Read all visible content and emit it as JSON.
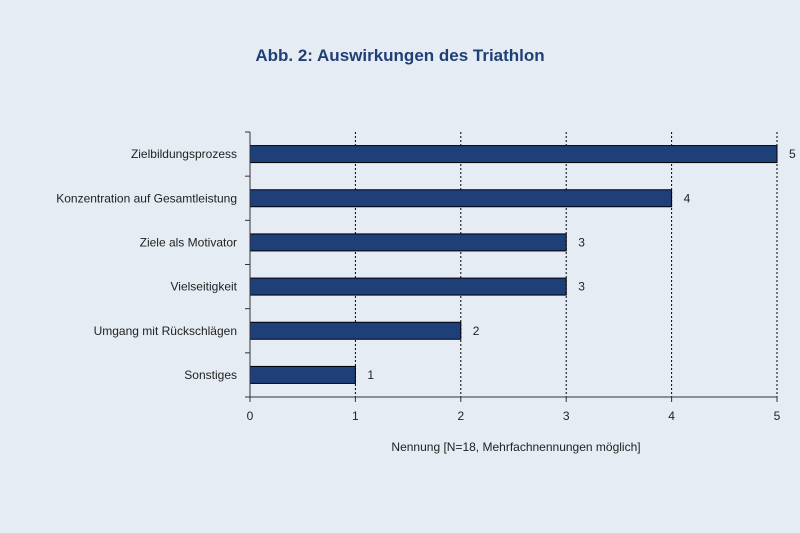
{
  "chart_data": {
    "type": "bar",
    "orientation": "horizontal",
    "title": "Abb. 2: Auswirkungen des Triathlon",
    "xlabel": "Nennung [N=18, Mehrfachnennungen möglich]",
    "ylabel": "",
    "xlim": [
      0,
      5
    ],
    "xticks": [
      "0",
      "1",
      "2",
      "3",
      "4",
      "5"
    ],
    "grid": "vertical-dashed",
    "legend": "none",
    "categories": [
      "Zielbildungsprozess",
      "Konzentration auf Gesamtleistung",
      "Ziele als Motivator",
      "Vielseitigkeit",
      "Umgang mit Rückschlägen",
      "Sonstiges"
    ],
    "values": [
      5,
      4,
      3,
      3,
      2,
      1
    ],
    "data_labels": [
      "5",
      "4",
      "3",
      "3",
      "2",
      "1"
    ]
  },
  "colors": {
    "background": "#e6ecf4",
    "bar_fill": "#1f3f78",
    "bar_stroke": "#000000",
    "title": "#1f3f78",
    "text": "#222222",
    "grid": "#000000"
  }
}
